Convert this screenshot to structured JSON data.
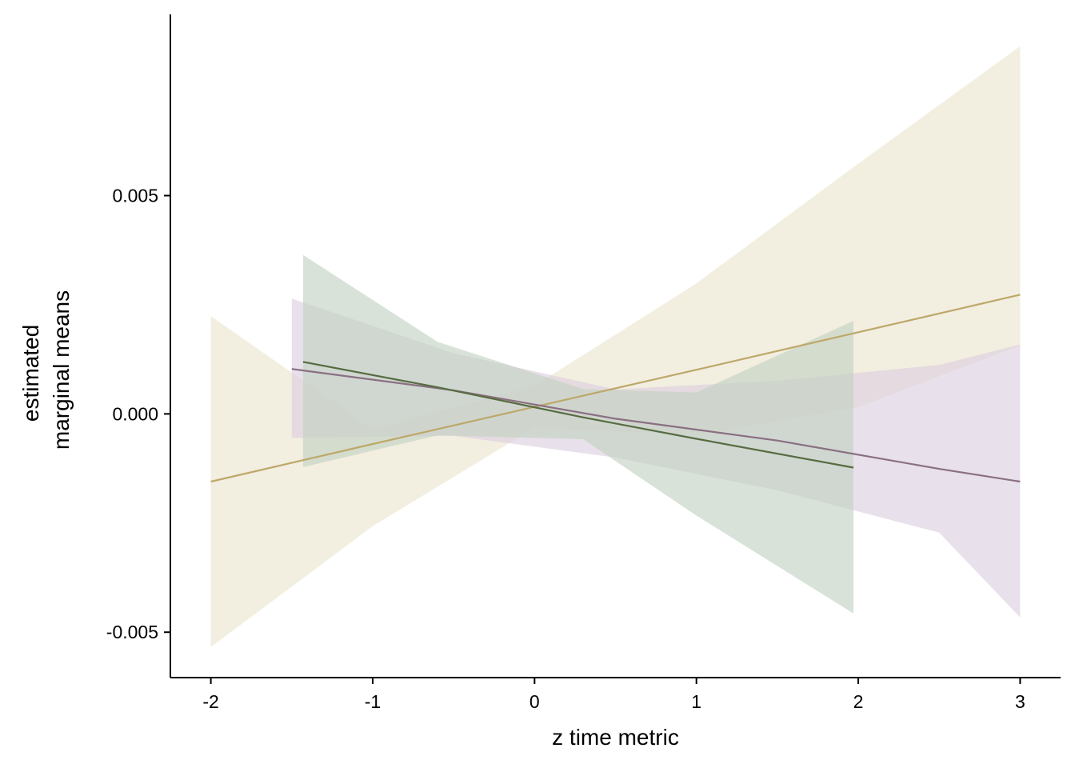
{
  "chart_data": {
    "type": "line",
    "title": "",
    "xlabel": "z time metric",
    "ylabel_lines": [
      "estimated",
      "marginal means"
    ],
    "xlim": [
      -2.25,
      3.25
    ],
    "ylim": [
      -0.00604,
      0.00915
    ],
    "x_ticks": [
      -2,
      -1,
      0,
      1,
      2,
      3
    ],
    "x_tick_labels": [
      "-2",
      "-1",
      "0",
      "1",
      "2",
      "3"
    ],
    "y_ticks": [
      -0.005,
      0.0,
      0.005
    ],
    "y_tick_labels": [
      "-0.005",
      "0.000",
      "0.005"
    ],
    "grid": false,
    "legend": "none",
    "series": [
      {
        "color": "#bda86a",
        "band_color": "#ebe5d0",
        "x": [
          -2.0,
          -1.0,
          0.0,
          1.0,
          2.0,
          3.0
        ],
        "y": [
          -0.00155,
          -0.00069,
          0.00016,
          0.00101,
          0.00187,
          0.00273
        ],
        "lower": [
          -0.00534,
          -0.00257,
          -0.00032,
          -0.00049,
          0.00016,
          0.00157
        ],
        "upper": [
          0.00224,
          -0.00035,
          0.00064,
          0.00299,
          0.00573,
          0.00842
        ]
      },
      {
        "color": "#8a6f82",
        "band_color": "#dcd0de",
        "x": [
          -1.5,
          -0.5,
          0.5,
          1.5,
          2.5,
          3.0
        ],
        "y": [
          0.00103,
          0.00054,
          -0.00011,
          -0.00061,
          -0.00126,
          -0.00155
        ],
        "lower": [
          -0.00055,
          -0.0005,
          -0.001,
          -0.00175,
          -0.00272,
          -0.00466
        ],
        "upper": [
          0.00264,
          0.00139,
          0.00056,
          0.00076,
          0.00112,
          0.00159
        ]
      },
      {
        "color": "#566c40",
        "band_color": "#c3d3c3",
        "x": [
          -1.43,
          -0.6,
          0.3,
          1.0,
          1.97
        ],
        "y": [
          0.00119,
          0.00061,
          -8e-05,
          -0.00057,
          -0.00123
        ],
        "lower": [
          -0.00122,
          -0.00049,
          -0.00058,
          -0.00233,
          -0.00457
        ],
        "upper": [
          0.00364,
          0.00165,
          0.00057,
          0.00049,
          0.00213
        ]
      }
    ]
  }
}
